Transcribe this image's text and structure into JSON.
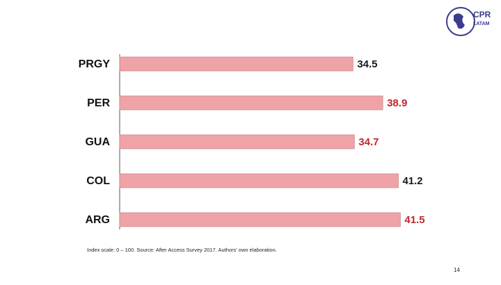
{
  "chart_data": {
    "type": "hbar",
    "categories": [
      "PRGY",
      "PER",
      "GUA",
      "COL",
      "ARG"
    ],
    "values": [
      34.5,
      38.9,
      34.7,
      41.2,
      41.5
    ],
    "color": "#efa3a6",
    "value_label_colors": [
      "#1a1a1a",
      "#c0262d",
      "#c0262d",
      "#1a1a1a",
      "#c0262d"
    ]
  },
  "footnote": "Index scale: 0 – 100. Source: After Access Survey 2017. Authors' own elaboration.",
  "page_number": "14",
  "logo": {
    "title": "CPR",
    "subtitle": "LATAM"
  }
}
